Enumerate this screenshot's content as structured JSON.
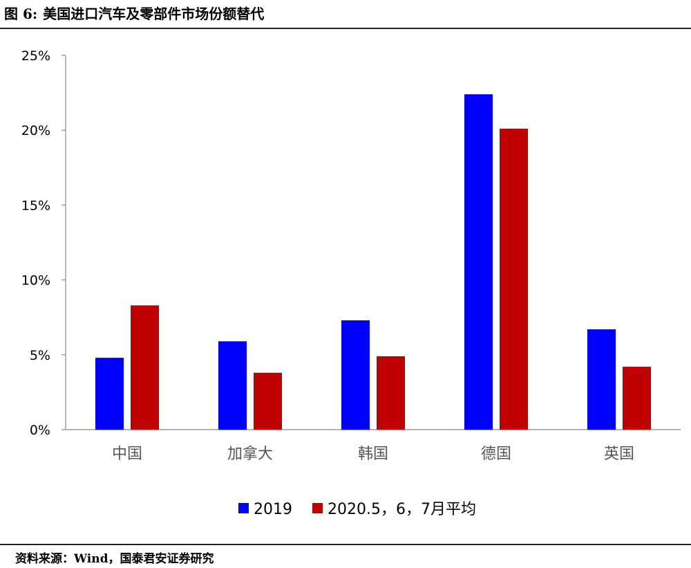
{
  "header": {
    "figure_number": "图 6:",
    "title": "美国进口汽车及零部件市场份额替代"
  },
  "footer": {
    "source": "资料来源：Wind，国泰君安证券研究"
  },
  "chart_data": {
    "type": "bar",
    "categories": [
      "中国",
      "加拿大",
      "韩国",
      "德国",
      "英国"
    ],
    "series": [
      {
        "name": "2019",
        "color": "#0000ff",
        "values": [
          4.8,
          5.9,
          7.3,
          22.4,
          6.7
        ]
      },
      {
        "name": "2020.5，6，7月平均",
        "color": "#c00000",
        "values": [
          8.3,
          3.8,
          4.9,
          20.1,
          4.2
        ]
      }
    ],
    "ylim": [
      0,
      25
    ],
    "yticks": [
      0,
      5,
      10,
      15,
      20,
      25
    ],
    "ytick_labels": [
      "0%",
      "5%",
      "10%",
      "15%",
      "20%",
      "25%"
    ],
    "xlabel": "",
    "ylabel": "",
    "legend_position": "bottom-center",
    "grid": false
  }
}
